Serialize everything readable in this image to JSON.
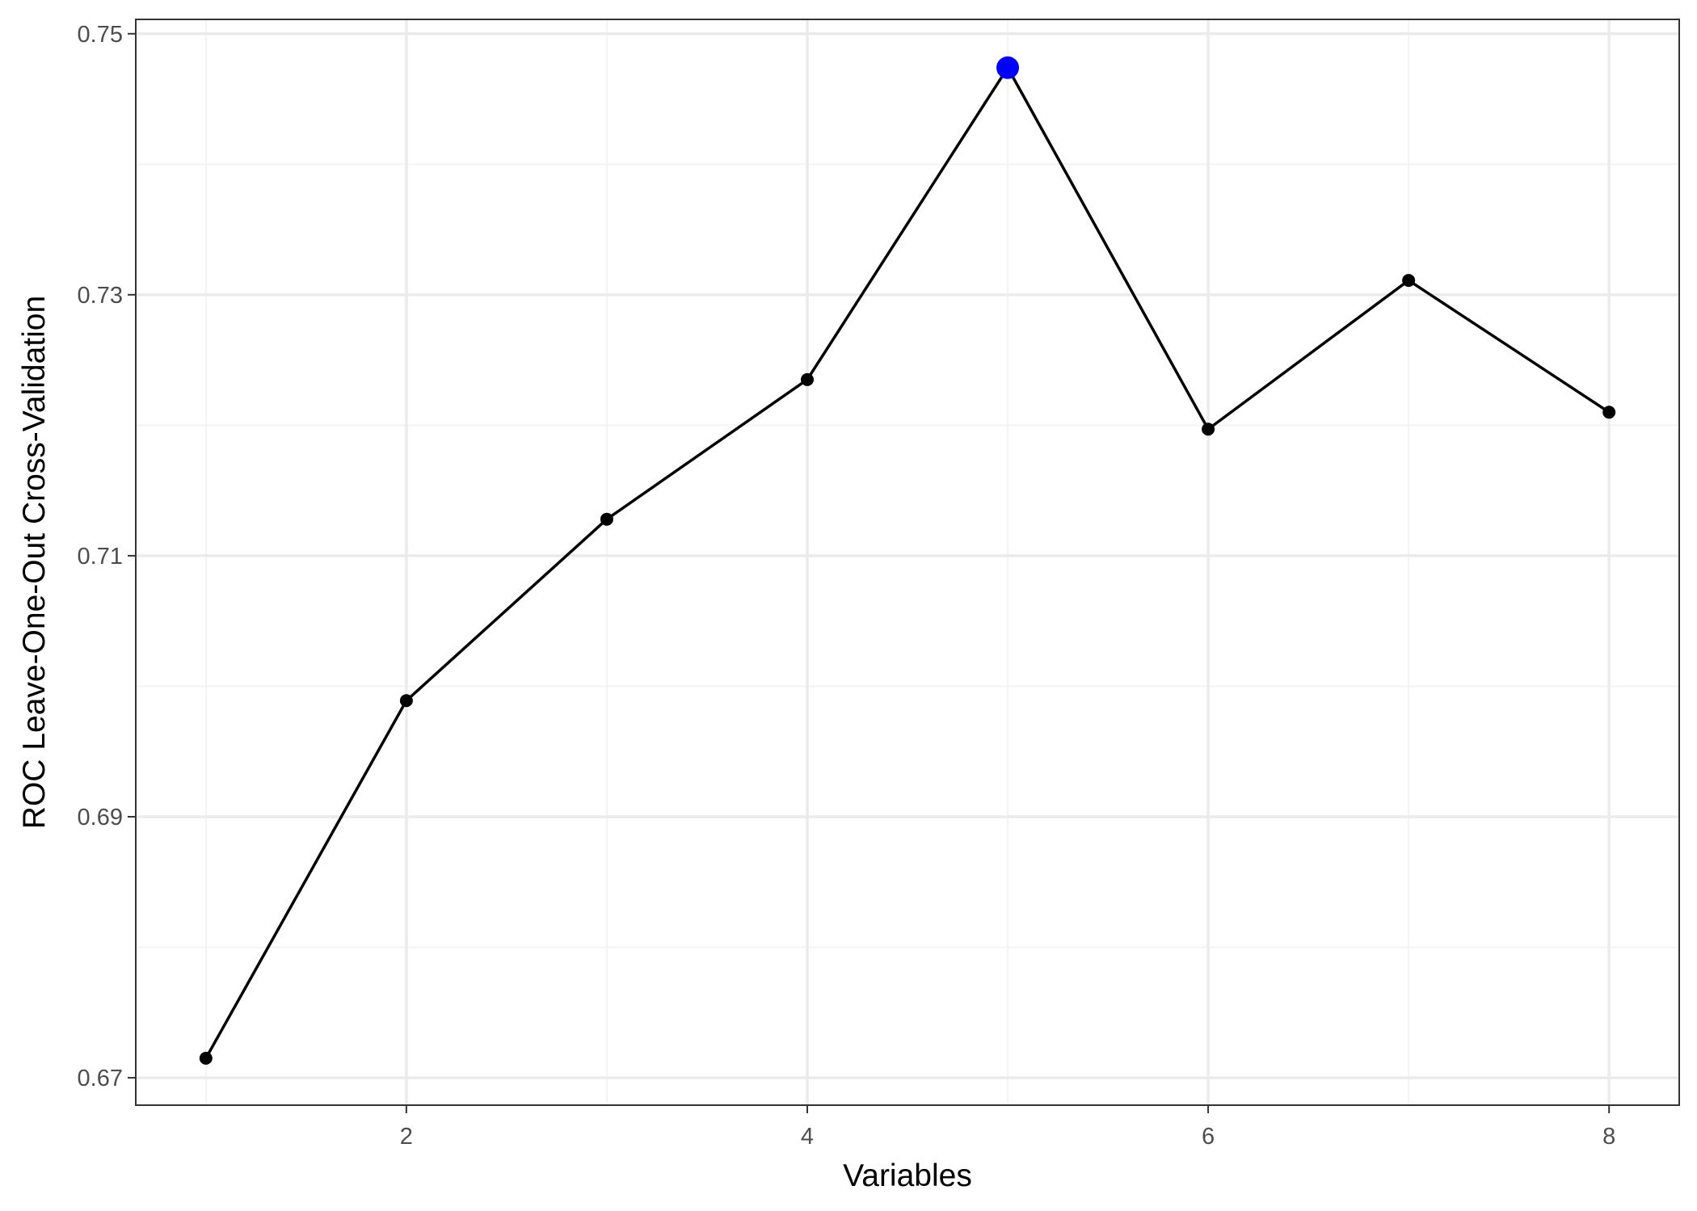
{
  "chart_data": {
    "type": "line",
    "title": "",
    "xlabel": "Variables",
    "ylabel": "ROC Leave-One-Out Cross-Validation",
    "xlim": [
      0.65,
      8.35
    ],
    "ylim": [
      0.6679,
      0.7511
    ],
    "x_ticks": [
      2,
      4,
      6,
      8
    ],
    "x_tick_labels": [
      "2",
      "4",
      "6",
      "8"
    ],
    "y_ticks": [
      0.67,
      0.69,
      0.71,
      0.73,
      0.75
    ],
    "y_tick_labels": [
      "0.67",
      "0.69",
      "0.71",
      "0.73",
      "0.75"
    ],
    "x_minor_ticks": [
      1,
      3,
      5,
      7
    ],
    "y_minor_ticks": [
      0.68,
      0.7,
      0.72,
      0.74
    ],
    "grid": true,
    "series": [
      {
        "x": [
          1,
          2,
          3,
          4,
          5,
          6,
          7,
          8
        ],
        "values": [
          0.6715,
          0.6989,
          0.7128,
          0.7235,
          0.7474,
          0.7197,
          0.7311,
          0.721
        ],
        "color": "#000000"
      }
    ],
    "highlight": {
      "x": 5,
      "value": 0.7474,
      "color": "#0000ff"
    }
  },
  "colors": {
    "background": "#ffffff",
    "panel_border": "#333333",
    "grid_major": "#ebebeb",
    "grid_minor": "#f3f3f3",
    "line": "#000000",
    "point": "#000000",
    "highlight": "#0000ff"
  }
}
